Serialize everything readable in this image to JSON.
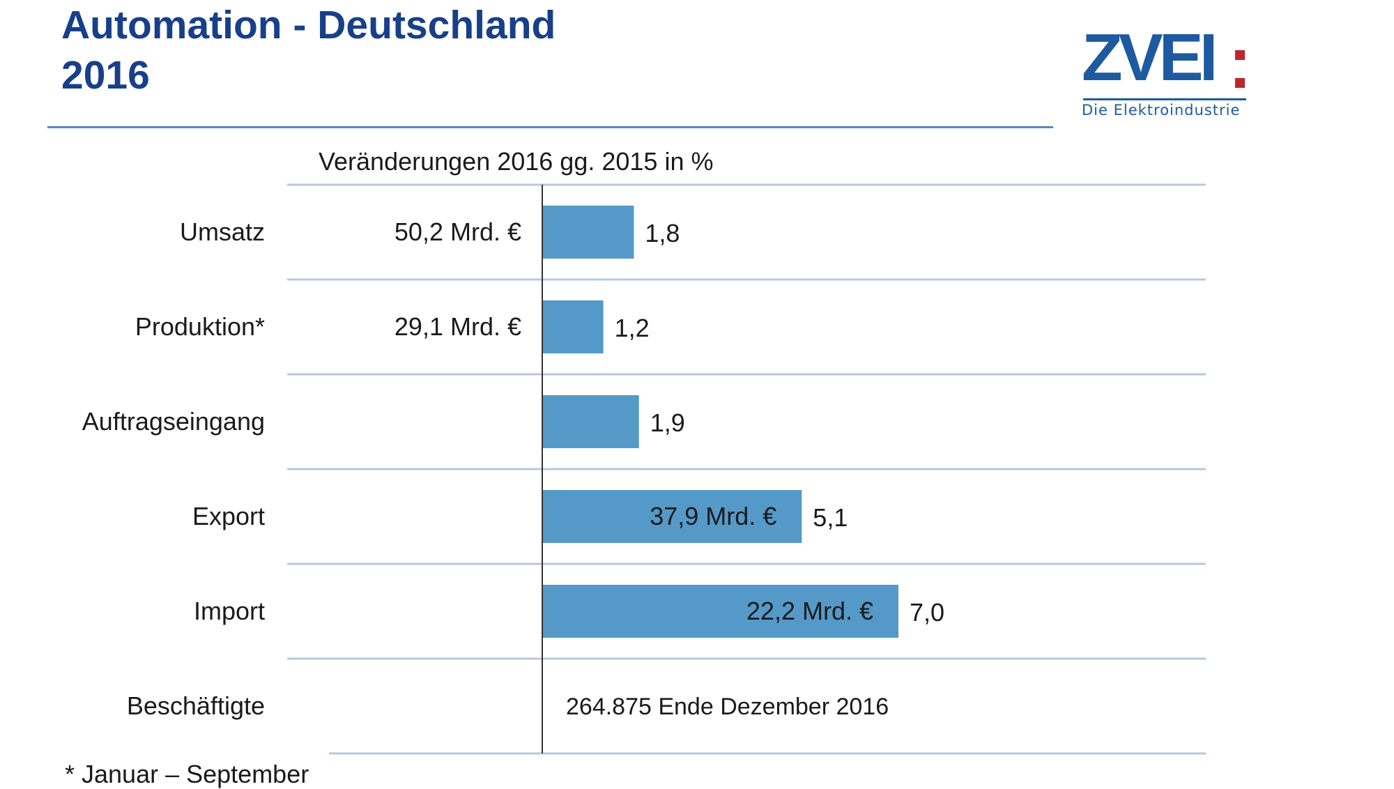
{
  "header": {
    "title_line1": "Automation - Deutschland",
    "title_line2": "2016"
  },
  "logo": {
    "mark": "ZVEI",
    "subtitle": "Die Elektroindustrie",
    "colors": {
      "blue": "#1d5aa0",
      "red": "#c0262d"
    }
  },
  "footnote": "* Januar – September",
  "chart_data": {
    "type": "bar",
    "orientation": "horizontal",
    "title": "Veränderungen 2016 gg. 2015 in %",
    "categories": [
      "Umsatz",
      "Produktion*",
      "Auftragseingang",
      "Export",
      "Import",
      "Beschäftigte"
    ],
    "values": [
      1.8,
      1.2,
      1.9,
      5.1,
      7.0,
      null
    ],
    "value_labels": [
      "1,8",
      "1,2",
      "1,9",
      "5,1",
      "7,0",
      ""
    ],
    "amounts": [
      "50,2 Mrd. €",
      "29,1 Mrd. €",
      "",
      "37,9 Mrd. €",
      "22,2 Mrd. €",
      ""
    ],
    "amount_position": [
      "left",
      "left",
      "",
      "inside",
      "inside",
      ""
    ],
    "extra_text": [
      "",
      "",
      "",
      "",
      "",
      "264.875 Ende Dezember 2016"
    ],
    "bar_color": "#5599c9",
    "grid": true
  }
}
